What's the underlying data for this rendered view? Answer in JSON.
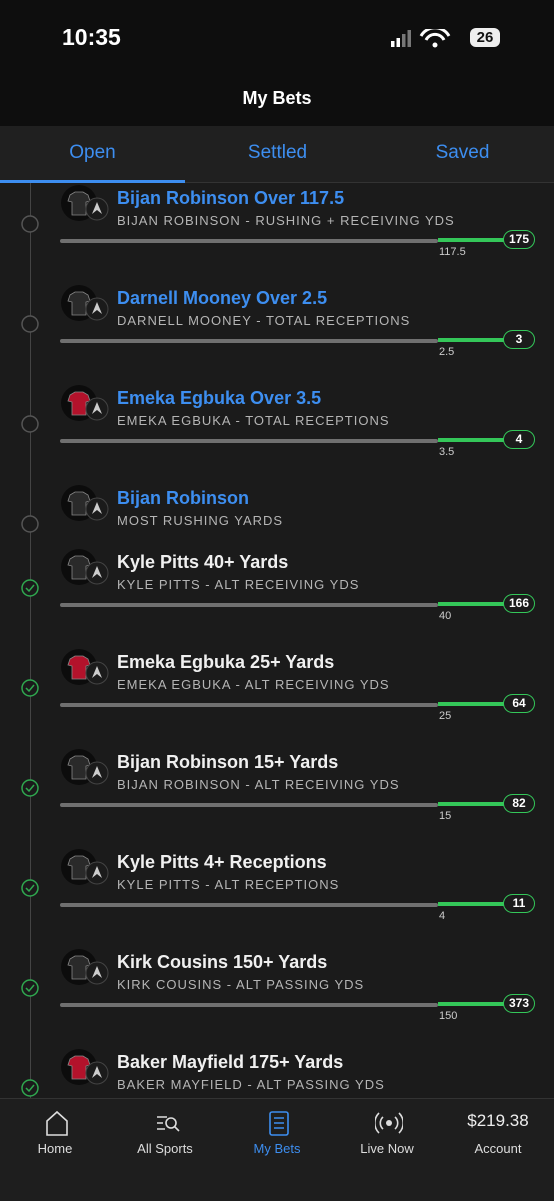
{
  "status_bar": {
    "time": "10:35",
    "battery": "26"
  },
  "header": {
    "title": "My Bets"
  },
  "tabs": [
    "Open",
    "Settled",
    "Saved"
  ],
  "bets": [
    {
      "title": "Bijan Robinson Over 117.5",
      "subtitle": "BIJAN ROBINSON - RUSHING + RECEIVING YDS",
      "line": "117.5",
      "result": "175",
      "status": "open",
      "jersey_color": "#2a2a2a"
    },
    {
      "title": "Darnell Mooney Over 2.5",
      "subtitle": "DARNELL MOONEY - TOTAL RECEPTIONS",
      "line": "2.5",
      "result": "3",
      "status": "open",
      "jersey_color": "#2a2a2a"
    },
    {
      "title": "Emeka Egbuka Over 3.5",
      "subtitle": "EMEKA EGBUKA - TOTAL RECEPTIONS",
      "line": "3.5",
      "result": "4",
      "status": "open",
      "jersey_color": "#b3122b"
    },
    {
      "title": "Bijan Robinson",
      "subtitle": "MOST RUSHING YARDS",
      "status": "open",
      "jersey_color": "#2a2a2a"
    },
    {
      "title": "Kyle Pitts 40+ Yards",
      "subtitle": "KYLE PITTS - ALT RECEIVING YDS",
      "line": "40",
      "result": "166",
      "status": "won",
      "jersey_color": "#2a2a2a"
    },
    {
      "title": "Emeka Egbuka 25+ Yards",
      "subtitle": "EMEKA EGBUKA - ALT RECEIVING YDS",
      "line": "25",
      "result": "64",
      "status": "won",
      "jersey_color": "#b3122b"
    },
    {
      "title": "Bijan Robinson 15+ Yards",
      "subtitle": "BIJAN ROBINSON - ALT RECEIVING YDS",
      "line": "15",
      "result": "82",
      "status": "won",
      "jersey_color": "#2a2a2a"
    },
    {
      "title": "Kyle Pitts 4+ Receptions",
      "subtitle": "KYLE PITTS - ALT RECEPTIONS",
      "line": "4",
      "result": "11",
      "status": "won",
      "jersey_color": "#2a2a2a"
    },
    {
      "title": "Kirk Cousins 150+ Yards",
      "subtitle": "KIRK COUSINS - ALT PASSING YDS",
      "line": "150",
      "result": "373",
      "status": "won",
      "jersey_color": "#2a2a2a"
    },
    {
      "title": "Baker Mayfield 175+ Yards",
      "subtitle": "BAKER MAYFIELD - ALT PASSING YDS",
      "status": "won",
      "jersey_color": "#b3122b"
    }
  ],
  "nav": [
    "Home",
    "All Sports",
    "My Bets",
    "Live Now",
    "$219.38",
    "Account"
  ]
}
